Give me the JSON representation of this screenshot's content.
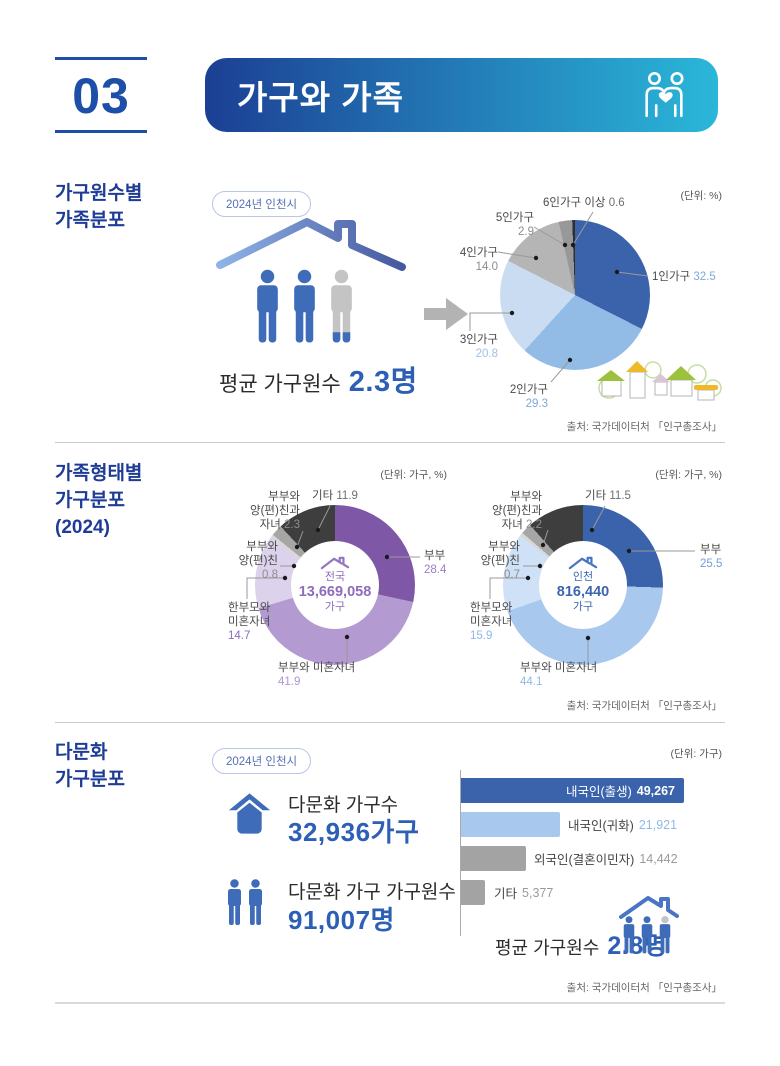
{
  "header": {
    "number": "03",
    "title": "가구와 가족",
    "accent": "#1d4ea8",
    "bar_gradient_start": "#1c3f94",
    "bar_gradient_end": "#2ab7d9"
  },
  "sections": {
    "s1": {
      "title_lines": [
        "가구원수별",
        "가족분포"
      ],
      "badge": "2024년 인천시",
      "avg_label": "평균 가구원수",
      "avg_value": "2.3명",
      "unit": "(단위: %)",
      "source": "출처: 국가데이터처 「인구총조사」"
    },
    "s2": {
      "title_lines": [
        "가족형태별",
        "가구분포",
        "(2024)"
      ],
      "unit_left": "(단위: 가구, %)",
      "unit_right": "(단위: 가구, %)",
      "source": "출처: 국가데이터처 「인구총조사」"
    },
    "s3": {
      "title_lines": [
        "다문화",
        "가구분포"
      ],
      "badge": "2024년 인천시",
      "unit": "(단위: 가구)",
      "stat1_label": "다문화 가구수",
      "stat1_value": "32,936가구",
      "stat2_label": "다문화 가구 가구원수",
      "stat2_value": "91,007명",
      "avg_label": "평균 가구원수",
      "avg_value": "2.8명",
      "source": "출처: 국가데이터처 「인구총조사」"
    }
  },
  "chart_data": [
    {
      "id": "household-size-pie",
      "type": "pie",
      "title": "가구원수별 가족분포 (2024년 인천시)",
      "unit": "%",
      "categories": [
        "1인가구",
        "2인가구",
        "3인가구",
        "4인가구",
        "5인가구",
        "6인가구 이상"
      ],
      "values": [
        32.5,
        29.3,
        20.8,
        14.0,
        2.9,
        0.6
      ],
      "value_labels": [
        "32.5",
        "29.3",
        "20.8",
        "14.0",
        "2.9",
        "0.6"
      ],
      "colors": [
        "#3a63ac",
        "#92bbe6",
        "#cadcf2",
        "#b5b5b5",
        "#989898",
        "#2f2f2f"
      ],
      "value_colors": [
        "#7fa9dc",
        "#7fa9dc",
        "#9dc2ea",
        "#8d8d8d",
        "#8d8d8d",
        "#6e6e6e"
      ],
      "legend_position": "around",
      "start_angle": 0,
      "clockwise": true
    },
    {
      "id": "family-type-donut-national",
      "type": "donut",
      "title": "가족형태별 가구분포 전국 (2024)",
      "unit": "가구, %",
      "center": {
        "region": "전국",
        "value": "13,669,058",
        "unit": "가구",
        "color": "#8d6cbd"
      },
      "categories": [
        "부부",
        "부부와 미혼자녀",
        "한부모와 미혼자녀",
        "부부와 양(편)친",
        "부부와 양(편)친과 자녀",
        "기타"
      ],
      "label_lines": [
        [
          "부부"
        ],
        [
          "부부와 미혼자녀"
        ],
        [
          "한부모와",
          "미혼자녀"
        ],
        [
          "부부와",
          "양(편)친"
        ],
        [
          "부부와",
          "양(편)친과",
          "자녀"
        ],
        [
          "기타"
        ]
      ],
      "values": [
        28.4,
        41.9,
        14.7,
        0.8,
        2.3,
        11.9
      ],
      "value_labels": [
        "28.4",
        "41.9",
        "14.7",
        "0.8",
        "2.3",
        "11.9"
      ],
      "colors": [
        "#7e57a7",
        "#b39bd2",
        "#ddd2ec",
        "#d8d8d8",
        "#a6a6a6",
        "#3e3e3e"
      ],
      "value_colors": [
        "#9b7ec6",
        "#af94d2",
        "#8a6cbd",
        "#8d8d8d",
        "#8d8d8d",
        "#6e6e6e"
      ],
      "start_angle": 0,
      "clockwise": true
    },
    {
      "id": "family-type-donut-incheon",
      "type": "donut",
      "title": "가족형태별 가구분포 인천 (2024)",
      "unit": "가구, %",
      "center": {
        "region": "인천",
        "value": "816,440",
        "unit": "가구",
        "color": "#3c66b0"
      },
      "categories": [
        "부부",
        "부부와 미혼자녀",
        "한부모와 미혼자녀",
        "부부와 양(편)친",
        "부부와 양(편)친과 자녀",
        "기타"
      ],
      "label_lines": [
        [
          "부부"
        ],
        [
          "부부와 미혼자녀"
        ],
        [
          "한부모와",
          "미혼자녀"
        ],
        [
          "부부와",
          "양(편)친"
        ],
        [
          "부부와",
          "양(편)친과",
          "자녀"
        ],
        [
          "기타"
        ]
      ],
      "values": [
        25.5,
        44.1,
        15.9,
        0.7,
        2.2,
        11.5
      ],
      "value_labels": [
        "25.5",
        "44.1",
        "15.9",
        "0.7",
        "2.2",
        "11.5"
      ],
      "colors": [
        "#3a63ac",
        "#a8c8ee",
        "#cfe1f6",
        "#d8d8d8",
        "#a6a6a6",
        "#3e3e3e"
      ],
      "value_colors": [
        "#6f9ed8",
        "#8fb9e8",
        "#8fb9e8",
        "#8d8d8d",
        "#8d8d8d",
        "#6e6e6e"
      ],
      "start_angle": 0,
      "clockwise": true
    },
    {
      "id": "multicultural-household-bar",
      "type": "bar",
      "title": "다문화 가구분포 (2024년 인천시)",
      "unit": "가구",
      "orientation": "horizontal",
      "categories": [
        "내국인(출생)",
        "내국인(귀화)",
        "외국인(결혼이민자)",
        "기타"
      ],
      "values": [
        49267,
        21921,
        14442,
        5377
      ],
      "value_labels": [
        "49,267",
        "21,921",
        "14,442",
        "5,377"
      ],
      "colors": [
        "#3a63ac",
        "#a8c8ee",
        "#a3a3a3",
        "#a3a3a3"
      ],
      "value_colors": [
        "#ffffff",
        "#8fb9e8",
        "#9a9a9a",
        "#9a9a9a"
      ],
      "xmax": 49267
    }
  ]
}
